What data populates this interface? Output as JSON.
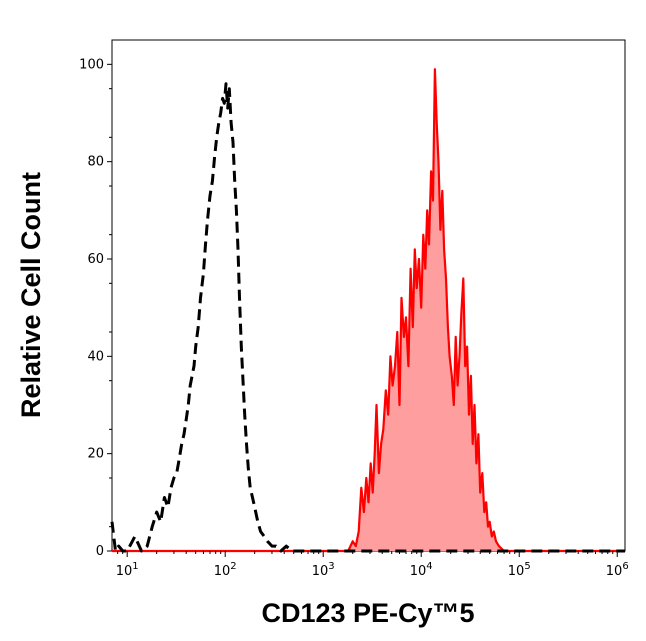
{
  "chart_data": {
    "type": "area",
    "title": "",
    "xlabel": "CD123 PE-Cy™5",
    "ylabel": "Relative Cell Count",
    "x_scale": "log",
    "xlim": [
      7,
      1200000
    ],
    "ylim": [
      0,
      105
    ],
    "grid": false,
    "x_ticks": [
      {
        "value": 10,
        "base": "10",
        "exp": "1"
      },
      {
        "value": 100,
        "base": "10",
        "exp": "2"
      },
      {
        "value": 1000,
        "base": "10",
        "exp": "3"
      },
      {
        "value": 10000,
        "base": "10",
        "exp": "4"
      },
      {
        "value": 100000,
        "base": "10",
        "exp": "5"
      },
      {
        "value": 1000000,
        "base": "10",
        "exp": "6"
      }
    ],
    "y_ticks": [
      {
        "value": 0,
        "label": "0"
      },
      {
        "value": 20,
        "label": "20"
      },
      {
        "value": 40,
        "label": "40"
      },
      {
        "value": 60,
        "label": "60"
      },
      {
        "value": 80,
        "label": "80"
      },
      {
        "value": 100,
        "label": "100"
      }
    ],
    "series": [
      {
        "style": "dashed",
        "color": "#000000",
        "x": [
          7,
          7.6,
          8.2,
          9,
          10,
          12,
          14,
          16,
          18,
          20,
          22,
          24,
          26,
          28,
          30,
          32,
          34,
          36,
          38,
          40,
          42,
          44,
          46,
          48,
          50,
          53,
          56,
          60,
          63,
          66,
          70,
          74,
          78,
          82,
          86,
          90,
          94,
          98,
          102,
          106,
          110,
          115,
          120,
          125,
          130,
          135,
          140,
          146,
          152,
          158,
          165,
          172,
          180,
          190,
          200,
          215,
          230,
          250,
          270,
          300,
          330,
          370,
          420,
          480,
          550,
          650,
          800,
          1200,
          2000,
          10000,
          100000,
          1200000
        ],
        "y": [
          6,
          0,
          1,
          0,
          0,
          3,
          0,
          1,
          5,
          8,
          6,
          11,
          9,
          13,
          15,
          16,
          19,
          22,
          24,
          27,
          30,
          34,
          36,
          38,
          42,
          46,
          52,
          57,
          63,
          68,
          73,
          76,
          81,
          85,
          88,
          90,
          93,
          92,
          96,
          91,
          95,
          88,
          84,
          76,
          70,
          62,
          52,
          42,
          35,
          28,
          22,
          17,
          13,
          11,
          9,
          6,
          4,
          3,
          2,
          1,
          1,
          0,
          1,
          0,
          0,
          0,
          0,
          0,
          0,
          0,
          0,
          0
        ]
      },
      {
        "style": "filled",
        "color": "#ff0000",
        "fill": "#ff9e9e",
        "x": [
          7,
          1000,
          1800,
          2000,
          2150,
          2300,
          2450,
          2600,
          2750,
          2900,
          3050,
          3200,
          3350,
          3500,
          3700,
          3900,
          4100,
          4350,
          4600,
          4850,
          5100,
          5400,
          5700,
          6000,
          6300,
          6650,
          7000,
          7400,
          7800,
          8200,
          8600,
          9000,
          9500,
          10000,
          10500,
          11000,
          11500,
          12000,
          12600,
          13200,
          13800,
          14400,
          15000,
          15700,
          16400,
          17100,
          17900,
          18700,
          19500,
          20500,
          21500,
          22500,
          23500,
          24600,
          25700,
          26900,
          28100,
          29400,
          30700,
          32100,
          33500,
          35000,
          36600,
          38300,
          40000,
          42000,
          44000,
          46000,
          48000,
          50000,
          52500,
          55000,
          58000,
          62000,
          70000,
          80000,
          100000,
          1200000
        ],
        "y": [
          0,
          0,
          0,
          2,
          1,
          4,
          13,
          8,
          15,
          10,
          18,
          12,
          20,
          30,
          16,
          22,
          25,
          33,
          28,
          40,
          34,
          38,
          45,
          30,
          52,
          44,
          48,
          38,
          58,
          46,
          62,
          54,
          60,
          50,
          65,
          58,
          70,
          63,
          78,
          72,
          99,
          88,
          80,
          66,
          74,
          62,
          56,
          46,
          40,
          36,
          30,
          44,
          34,
          40,
          49,
          56,
          38,
          42,
          28,
          36,
          22,
          30,
          18,
          24,
          12,
          16,
          8,
          10,
          5,
          6,
          3,
          4,
          2,
          1,
          0,
          0,
          0,
          0
        ]
      }
    ]
  }
}
